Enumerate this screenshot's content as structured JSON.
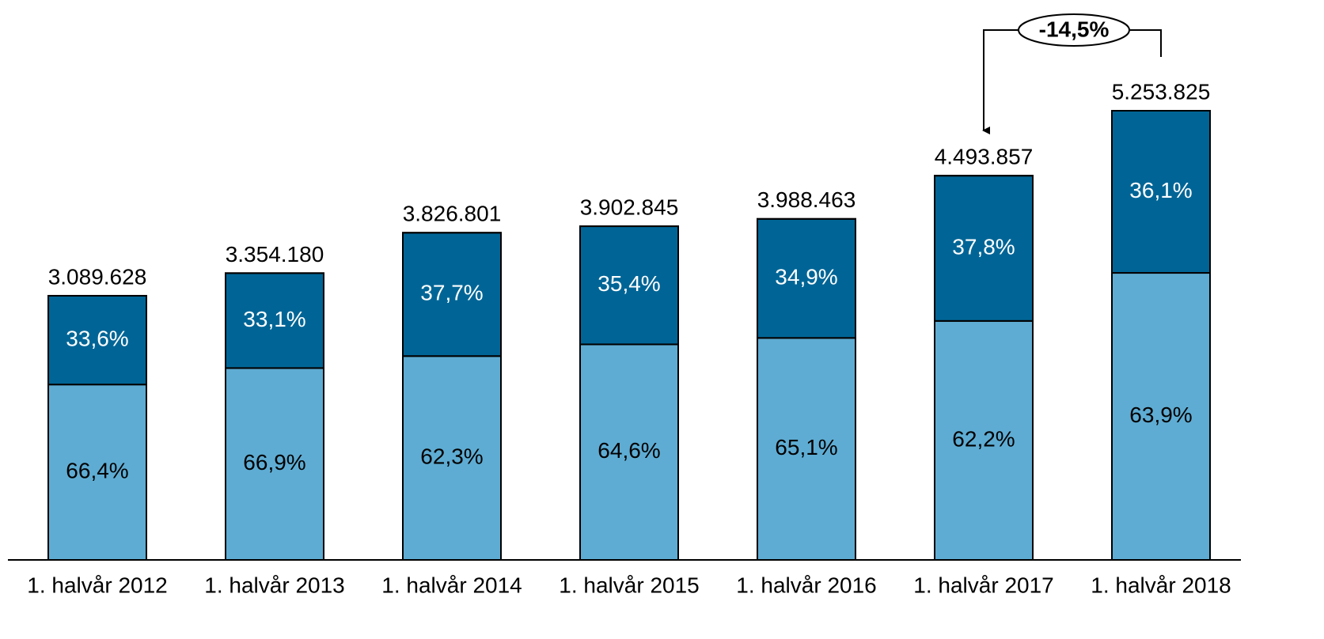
{
  "chart_data": {
    "type": "bar",
    "categories": [
      "1. halvår 2012",
      "1. halvår 2013",
      "1. halvår 2014",
      "1. halvår 2015",
      "1. halvår 2016",
      "1. halvår 2017",
      "1. halvår 2018"
    ],
    "totals": {
      "values": [
        3089628,
        3354180,
        3826801,
        3902845,
        3988463,
        4493857,
        5253825
      ],
      "value_labels": [
        "3.089.628",
        "3.354.180",
        "3.826.801",
        "3.902.845",
        "3.988.463",
        "4.493.857",
        "5.253.825"
      ]
    },
    "series": [
      {
        "color": "#5eacd3",
        "label_color": "#000000",
        "values": [
          66.4,
          66.9,
          62.3,
          64.6,
          65.1,
          62.2,
          63.9
        ],
        "value_labels": [
          "66,4%",
          "66,9%",
          "62,3%",
          "64,6%",
          "65,1%",
          "62,2%",
          "63,9%"
        ]
      },
      {
        "color": "#006596",
        "label_color": "#ffffff",
        "values": [
          33.6,
          33.1,
          37.7,
          35.4,
          34.9,
          37.8,
          36.1
        ],
        "value_labels": [
          "33,6%",
          "33,1%",
          "37,7%",
          "35,4%",
          "34,9%",
          "37,8%",
          "36,1%"
        ]
      }
    ],
    "annotation": "-14,5%"
  }
}
